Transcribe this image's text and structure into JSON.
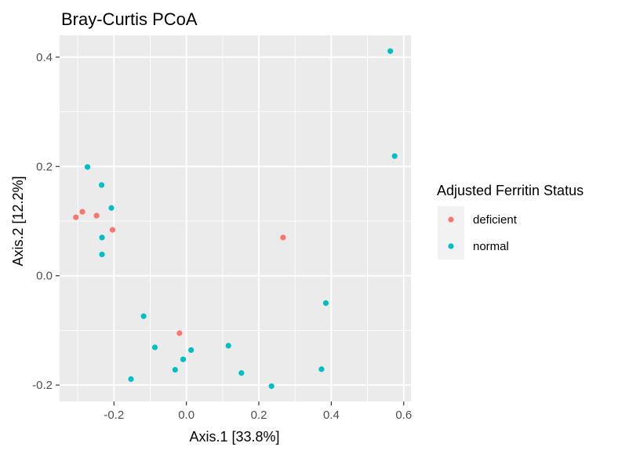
{
  "chart_data": {
    "type": "scatter",
    "title": "Bray-Curtis PCoA",
    "xlabel": "Axis.1   [33.8%]",
    "ylabel": "Axis.2   [12.2%]",
    "xlim": [
      -0.35,
      0.62
    ],
    "ylim": [
      -0.23,
      0.44
    ],
    "x_ticks": [
      -0.2,
      0.0,
      0.2,
      0.4,
      0.6
    ],
    "x_tick_labels": [
      "-0.2",
      "0.0",
      "0.2",
      "0.4",
      "0.6"
    ],
    "y_ticks": [
      -0.2,
      0.0,
      0.2,
      0.4
    ],
    "y_tick_labels": [
      "-0.2",
      "0.0",
      "0.2",
      "0.4"
    ],
    "grid": true,
    "legend": {
      "title": "Adjusted Ferritin Status",
      "position": "right"
    },
    "series": [
      {
        "name": "deficient",
        "color": "#F8766D",
        "points": [
          {
            "x": -0.305,
            "y": 0.107
          },
          {
            "x": -0.287,
            "y": 0.117
          },
          {
            "x": -0.248,
            "y": 0.11
          },
          {
            "x": -0.204,
            "y": 0.084
          },
          {
            "x": -0.019,
            "y": -0.105
          },
          {
            "x": 0.267,
            "y": 0.07
          }
        ]
      },
      {
        "name": "normal",
        "color": "#00BFC4",
        "points": [
          {
            "x": -0.273,
            "y": 0.199
          },
          {
            "x": -0.234,
            "y": 0.166
          },
          {
            "x": -0.207,
            "y": 0.124
          },
          {
            "x": -0.233,
            "y": 0.07
          },
          {
            "x": -0.233,
            "y": 0.039
          },
          {
            "x": -0.118,
            "y": -0.074
          },
          {
            "x": -0.087,
            "y": -0.131
          },
          {
            "x": -0.153,
            "y": -0.189
          },
          {
            "x": -0.031,
            "y": -0.172
          },
          {
            "x": -0.009,
            "y": -0.153
          },
          {
            "x": 0.013,
            "y": -0.136
          },
          {
            "x": 0.116,
            "y": -0.128
          },
          {
            "x": 0.152,
            "y": -0.178
          },
          {
            "x": 0.235,
            "y": -0.202
          },
          {
            "x": 0.373,
            "y": -0.171
          },
          {
            "x": 0.385,
            "y": -0.05
          },
          {
            "x": 0.563,
            "y": 0.411
          },
          {
            "x": 0.575,
            "y": 0.219
          }
        ]
      }
    ]
  }
}
